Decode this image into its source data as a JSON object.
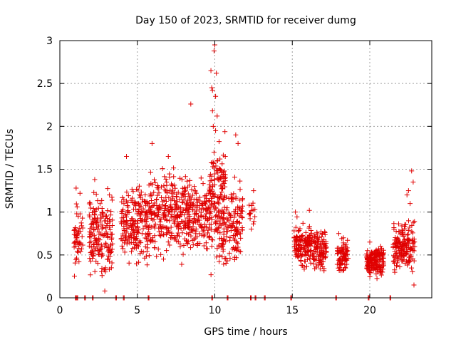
{
  "chart_data": {
    "type": "scatter",
    "title": "Day 150 of 2023, SRMTID for receiver dumg",
    "xlabel": "GPS time / hours",
    "ylabel": "SRMTID / TECUs",
    "xlim": [
      0,
      24
    ],
    "ylim": [
      0,
      3
    ],
    "xticks": [
      0,
      5,
      10,
      15,
      20
    ],
    "yticks": [
      0,
      0.5,
      1,
      1.5,
      2,
      2.5,
      3
    ],
    "grid": true,
    "marker": "plus",
    "color": "#e00000",
    "clusters": [
      {
        "x_start": 0.9,
        "x_end": 1.5,
        "y_min": 0.2,
        "y_max": 1.25,
        "count": 50,
        "seed": 11
      },
      {
        "x_start": 1.9,
        "x_end": 3.4,
        "y_min": 0.08,
        "y_max": 1.4,
        "count": 180,
        "seed": 12
      },
      {
        "x_start": 3.9,
        "x_end": 5.7,
        "y_min": 0.3,
        "y_max": 1.45,
        "count": 200,
        "seed": 13
      },
      {
        "x_start": 5.7,
        "x_end": 8.5,
        "y_min": 0.3,
        "y_max": 1.65,
        "count": 330,
        "seed": 14
      },
      {
        "x_start": 8.5,
        "x_end": 9.6,
        "y_min": 0.4,
        "y_max": 1.5,
        "count": 110,
        "seed": 15
      },
      {
        "x_start": 9.6,
        "x_end": 10.7,
        "y_min": 0.05,
        "y_max": 2.2,
        "count": 170,
        "seed": 16
      },
      {
        "x_start": 10.5,
        "x_end": 11.8,
        "y_min": 0.2,
        "y_max": 1.55,
        "count": 130,
        "seed": 17
      },
      {
        "x_start": 12.2,
        "x_end": 12.6,
        "y_min": 0.75,
        "y_max": 1.25,
        "count": 14,
        "seed": 18
      },
      {
        "x_start": 15.1,
        "x_end": 16.3,
        "y_min": 0.25,
        "y_max": 1.0,
        "count": 150,
        "seed": 19
      },
      {
        "x_start": 16.3,
        "x_end": 17.2,
        "y_min": 0.25,
        "y_max": 0.85,
        "count": 110,
        "seed": 20
      },
      {
        "x_start": 17.9,
        "x_end": 18.6,
        "y_min": 0.25,
        "y_max": 0.75,
        "count": 80,
        "seed": 21
      },
      {
        "x_start": 19.8,
        "x_end": 20.9,
        "y_min": 0.2,
        "y_max": 0.65,
        "count": 170,
        "seed": 22
      },
      {
        "x_start": 21.5,
        "x_end": 22.9,
        "y_min": 0.2,
        "y_max": 1.0,
        "count": 170,
        "seed": 23
      }
    ],
    "extra_points": [
      [
        9.75,
        2.65
      ],
      [
        9.8,
        2.45
      ],
      [
        10.0,
        2.95
      ],
      [
        9.95,
        2.88
      ],
      [
        10.1,
        2.62
      ],
      [
        9.85,
        2.42
      ],
      [
        10.05,
        2.35
      ],
      [
        8.45,
        2.26
      ],
      [
        9.9,
        2.0
      ],
      [
        10.05,
        1.95
      ],
      [
        9.85,
        2.18
      ],
      [
        10.15,
        2.12
      ],
      [
        11.35,
        1.9
      ],
      [
        11.5,
        1.8
      ],
      [
        4.3,
        1.65
      ],
      [
        5.95,
        1.8
      ],
      [
        7.0,
        1.65
      ],
      [
        22.7,
        1.48
      ],
      [
        22.8,
        1.35
      ],
      [
        22.85,
        0.15
      ],
      [
        2.25,
        1.38
      ],
      [
        2.9,
        0.08
      ],
      [
        12.5,
        1.25
      ],
      [
        16.1,
        1.02
      ],
      [
        15.2,
        1.0
      ],
      [
        22.5,
        1.25
      ],
      [
        22.4,
        1.2
      ],
      [
        22.6,
        1.1
      ],
      [
        20.0,
        0.65
      ],
      [
        20.7,
        0.6
      ],
      [
        18.0,
        0.75
      ],
      [
        18.3,
        0.7
      ],
      [
        1.05,
        1.28
      ],
      [
        1.3,
        1.22
      ],
      [
        3.2,
        1.2
      ]
    ],
    "zero_points": [
      1.0,
      1.1,
      1.6,
      2.1,
      3.6,
      4.1,
      5.7,
      9.8,
      10.8,
      12.3,
      12.6,
      13.2,
      14.9,
      17.8,
      19.9,
      21.3
    ]
  }
}
